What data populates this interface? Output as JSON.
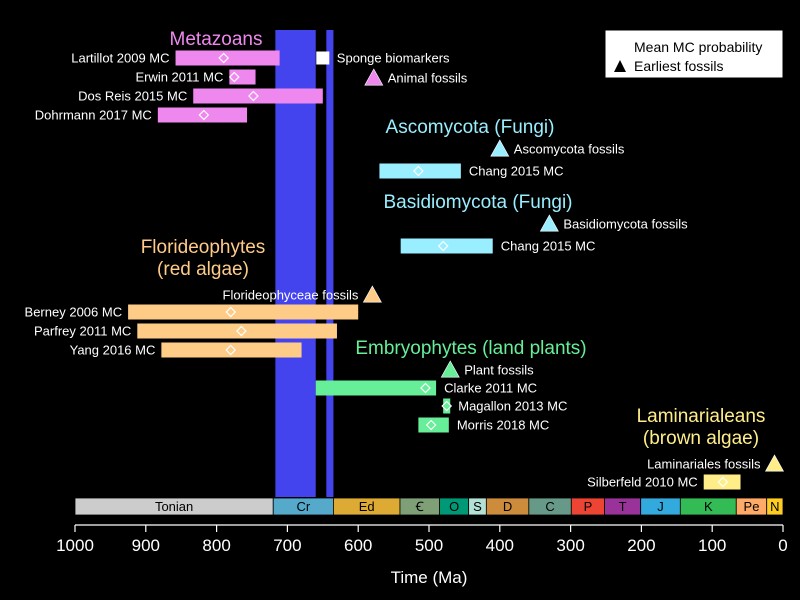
{
  "colors": {
    "background": "#000000",
    "snowball": "#4444ee",
    "metazoa": "#ee88ee",
    "fungi": "#99eeff",
    "red_algae": "#ffcc88",
    "land_plants": "#66ee99",
    "brown_algae": "#ffee88"
  },
  "legend": {
    "mean_label": "Mean MC probability",
    "fossil_label": "Earliest fossils"
  },
  "groups": [
    {
      "id": "metazoans",
      "lines": [
        "Metazoans"
      ],
      "color": "#ee88ee"
    },
    {
      "id": "ascomycota",
      "lines": [
        "Ascomycota (Fungi)"
      ],
      "color": "#99eeff"
    },
    {
      "id": "basidiomycota",
      "lines": [
        "Basidiomycota (Fungi)"
      ],
      "color": "#99eeff"
    },
    {
      "id": "florideophytes",
      "lines": [
        "Florideophytes",
        "(red algae)"
      ],
      "color": "#ffcc88"
    },
    {
      "id": "embryophytes",
      "lines": [
        "Embryophytes (land plants)"
      ],
      "color": "#66ee99"
    },
    {
      "id": "laminarialeans",
      "lines": [
        "Laminarialeans",
        "(brown algae)"
      ],
      "color": "#ffee88"
    }
  ],
  "bars": [
    {
      "label": "Lartillot 2009 MC",
      "start": 858,
      "end": 711,
      "mean": 790,
      "color": "#ee88ee",
      "label_side": "left"
    },
    {
      "label": "Erwin 2011 MC",
      "start": 782,
      "end": 745,
      "mean": 775,
      "color": "#ee88ee",
      "label_side": "left"
    },
    {
      "label": "Dos Reis 2015 MC",
      "start": 833,
      "end": 650,
      "mean": 748,
      "color": "#ee88ee",
      "label_side": "left"
    },
    {
      "label": "Dohrmann 2017 MC",
      "start": 883,
      "end": 757,
      "mean": 818,
      "color": "#ee88ee",
      "label_side": "left"
    },
    {
      "label": "Chang 2015 MC",
      "start": 570,
      "end": 455,
      "mean": 515,
      "color": "#99eeff",
      "label_side": "right"
    },
    {
      "label": "Chang 2015 MC",
      "start": 540,
      "end": 410,
      "mean": 480,
      "color": "#99eeff",
      "label_side": "right"
    },
    {
      "label": "Berney 2006 MC",
      "start": 925,
      "end": 600,
      "mean": 780,
      "color": "#ffcc88",
      "label_side": "left"
    },
    {
      "label": "Parfrey 2011 MC",
      "start": 912,
      "end": 630,
      "mean": 765,
      "color": "#ffcc88",
      "label_side": "left"
    },
    {
      "label": "Yang 2016 MC",
      "start": 878,
      "end": 680,
      "mean": 780,
      "color": "#ffcc88",
      "label_side": "left"
    },
    {
      "label": "Clarke 2011 MC",
      "start": 660,
      "end": 490,
      "mean": 505,
      "color": "#66ee99",
      "label_side": "right"
    },
    {
      "label": "Magallon 2013 MC",
      "start": 480,
      "end": 470,
      "mean": 475,
      "color": "#66ee99",
      "label_side": "right"
    },
    {
      "label": "Morris 2018 MC",
      "start": 515,
      "end": 472,
      "mean": 497,
      "color": "#66ee99",
      "label_side": "right"
    },
    {
      "label": "Silberfeld 2010 MC",
      "start": 112,
      "end": 60,
      "mean": 85,
      "color": "#ffee88",
      "label_side": "left"
    }
  ],
  "fossils": [
    {
      "label": "Sponge biomarkers",
      "age": 650,
      "marker": "square",
      "color": "#ffffff",
      "label_side": "right"
    },
    {
      "label": "Animal fossils",
      "age": 578,
      "marker": "triangle",
      "color": "#ee88ee",
      "label_side": "right"
    },
    {
      "label": "Ascomycota fossils",
      "age": 400,
      "marker": "triangle",
      "color": "#99eeff",
      "label_side": "right"
    },
    {
      "label": "Basidiomycota fossils",
      "age": 330,
      "marker": "triangle",
      "color": "#99eeff",
      "label_side": "right"
    },
    {
      "label": "Florideophyceae fossils",
      "age": 580,
      "marker": "triangle",
      "color": "#ffcc88",
      "label_side": "left"
    },
    {
      "label": "Plant fossils",
      "age": 470,
      "marker": "triangle",
      "color": "#66ee99",
      "label_side": "right"
    },
    {
      "label": "Laminariales fossils",
      "age": 12,
      "marker": "triangle",
      "color": "#ffee88",
      "label_side": "left"
    }
  ],
  "snowball_intervals": [
    {
      "start": 717,
      "end": 660
    },
    {
      "start": 645,
      "end": 635
    }
  ],
  "periods": [
    {
      "name": "Tonian",
      "start": 1000,
      "end": 720,
      "color": "#cccccc"
    },
    {
      "name": "Cr",
      "start": 720,
      "end": 635,
      "color": "#55aacc"
    },
    {
      "name": "Ed",
      "start": 635,
      "end": 541,
      "color": "#ddaa33"
    },
    {
      "name": "Ꞓ",
      "start": 541,
      "end": 485,
      "color": "#7fa077"
    },
    {
      "name": "O",
      "start": 485,
      "end": 444,
      "color": "#009977"
    },
    {
      "name": "S",
      "start": 444,
      "end": 419,
      "color": "#b3e1d6"
    },
    {
      "name": "D",
      "start": 419,
      "end": 359,
      "color": "#cc8c3c"
    },
    {
      "name": "C",
      "start": 359,
      "end": 299,
      "color": "#669988"
    },
    {
      "name": "P",
      "start": 299,
      "end": 252,
      "color": "#ee4433"
    },
    {
      "name": "T",
      "start": 252,
      "end": 201,
      "color": "#993399"
    },
    {
      "name": "J",
      "start": 201,
      "end": 145,
      "color": "#33aadd"
    },
    {
      "name": "K",
      "start": 145,
      "end": 66,
      "color": "#33bb55"
    },
    {
      "name": "Pe",
      "start": 66,
      "end": 23,
      "color": "#ffaa66"
    },
    {
      "name": "N",
      "start": 23,
      "end": 0,
      "color": "#ffcc22"
    }
  ],
  "axis": {
    "xlabel": "Time (Ma)",
    "xlim": [
      1000,
      0
    ],
    "ticks": [
      1000,
      900,
      800,
      700,
      600,
      500,
      400,
      300,
      200,
      100,
      0
    ]
  }
}
